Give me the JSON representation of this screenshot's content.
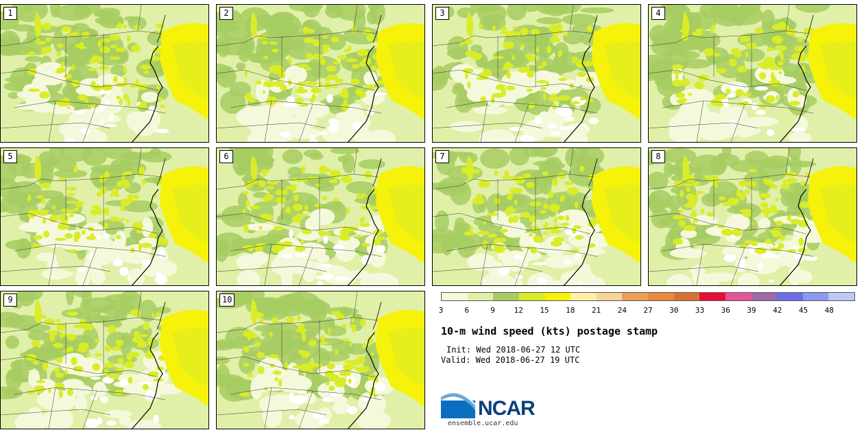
{
  "title": "10-m wind speed (kts) postage stamp",
  "init_text": "Init: Wed 2018-06-27 12 UTC",
  "valid_text": "Valid: Wed 2018-06-27 19 UTC",
  "logo": {
    "name": "NCAR",
    "site": "ensemble.ucar.edu",
    "icon": "ncar-swoosh-logo",
    "color": "#0b3f7a"
  },
  "members": [
    "1",
    "2",
    "3",
    "4",
    "5",
    "6",
    "7",
    "8",
    "9",
    "10"
  ],
  "colorbar": {
    "colors": [
      "#f5f9dc",
      "#e0f0a8",
      "#a6cd62",
      "#d9ec28",
      "#f6f209",
      "#fdf0a0",
      "#f6d49a",
      "#ef9e56",
      "#e8883c",
      "#d67334",
      "#e60d3a",
      "#e6559a",
      "#9f6aa8",
      "#6a6ee6",
      "#8d98f4",
      "#bec8f4"
    ],
    "ticks": [
      "3",
      "6",
      "9",
      "12",
      "15",
      "18",
      "21",
      "24",
      "27",
      "30",
      "33",
      "36",
      "39",
      "42",
      "45",
      "48"
    ]
  }
}
